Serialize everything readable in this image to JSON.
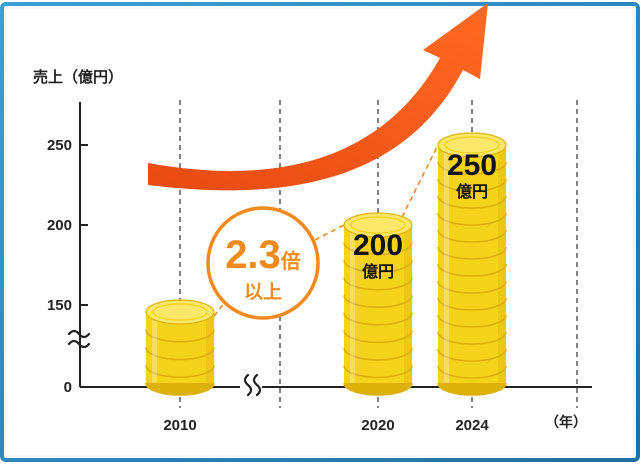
{
  "chart_data": {
    "type": "bar",
    "style": "coin-stacks",
    "ylabel": "売上（億円）",
    "xunit": "（年）",
    "categories": [
      "2010",
      "2020",
      "2024"
    ],
    "values": [
      108,
      200,
      250
    ],
    "value_labels": [
      {
        "category": "2020",
        "number": "200",
        "unit": "億円"
      },
      {
        "category": "2024",
        "number": "250",
        "unit": "億円"
      }
    ],
    "yticks": [
      0,
      150,
      200,
      250
    ],
    "ylim": [
      0,
      275
    ],
    "axis_break": true,
    "annotation": {
      "number": "2.3",
      "suffix": "倍",
      "line2": "以上",
      "from": "2010",
      "to": "2024"
    },
    "trend_arrow": true,
    "colors": {
      "coin": "#f5d31a",
      "coin_dark": "#dcb10a",
      "coin_light": "#fbe868",
      "arrow": "#f35a1a",
      "accent": "#f08a1c",
      "border": "#2b8cc4"
    }
  }
}
